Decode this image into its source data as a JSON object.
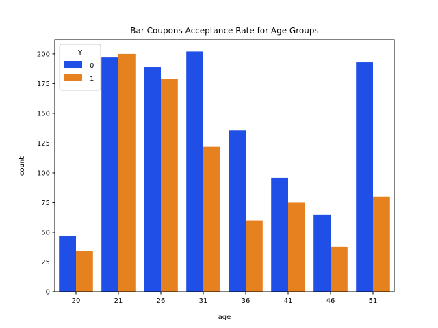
{
  "chart_data": {
    "type": "bar",
    "title": "Bar Coupons Acceptance Rate for Age Groups",
    "xlabel": "age",
    "ylabel": "count",
    "categories": [
      "20",
      "21",
      "26",
      "31",
      "36",
      "41",
      "46",
      "51"
    ],
    "ylim": [
      0,
      212
    ],
    "yticks": [
      0,
      25,
      50,
      75,
      100,
      125,
      150,
      175,
      200
    ],
    "legend": {
      "title": "Y",
      "position": "top-left"
    },
    "series": [
      {
        "name": "0",
        "color": "#1f4fe6",
        "values": [
          47,
          197,
          189,
          202,
          136,
          96,
          65,
          193
        ]
      },
      {
        "name": "1",
        "color": "#e6811f",
        "values": [
          34,
          200,
          179,
          122,
          60,
          75,
          38,
          80
        ]
      }
    ],
    "grid": false
  }
}
